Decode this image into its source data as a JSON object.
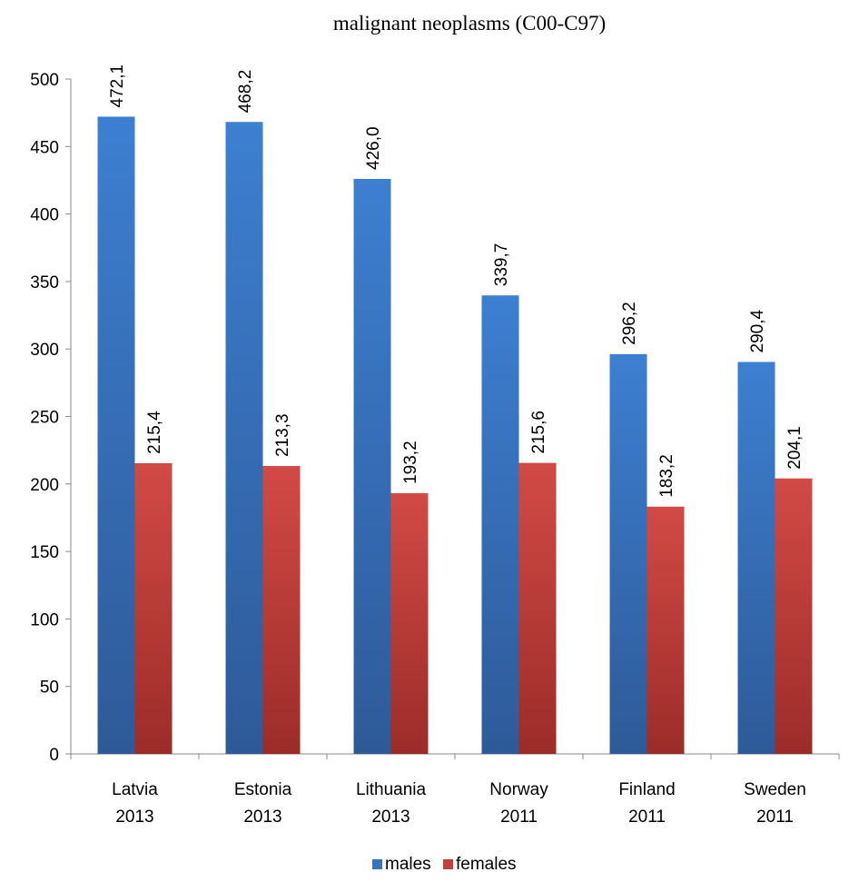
{
  "chart_data": {
    "type": "bar",
    "title": "malignant neoplasms (C00-C97)",
    "categories": [
      [
        "Latvia",
        "2013"
      ],
      [
        "Estonia",
        "2013"
      ],
      [
        "Lithuania",
        "2013"
      ],
      [
        "Norway",
        "2011"
      ],
      [
        "Finland",
        "2011"
      ],
      [
        "Sweden",
        "2011"
      ]
    ],
    "series": [
      {
        "name": "males",
        "color": "#3b72be",
        "values": [
          472.1,
          468.2,
          426.0,
          339.7,
          296.2,
          290.4
        ],
        "labels": [
          "472,1",
          "468,2",
          "426,0",
          "339,7",
          "296,2",
          "290,4"
        ]
      },
      {
        "name": "females",
        "color": "#c0403c",
        "values": [
          215.4,
          213.3,
          193.2,
          215.6,
          183.2,
          204.1
        ],
        "labels": [
          "215,4",
          "213,3",
          "193,2",
          "215,6",
          "183,2",
          "204,1"
        ]
      }
    ],
    "ylim": [
      0,
      500
    ],
    "yticks": [
      0,
      50,
      100,
      150,
      200,
      250,
      300,
      350,
      400,
      450,
      500
    ],
    "xlabel": "",
    "ylabel": "",
    "grid": false,
    "legend": "bottom"
  }
}
